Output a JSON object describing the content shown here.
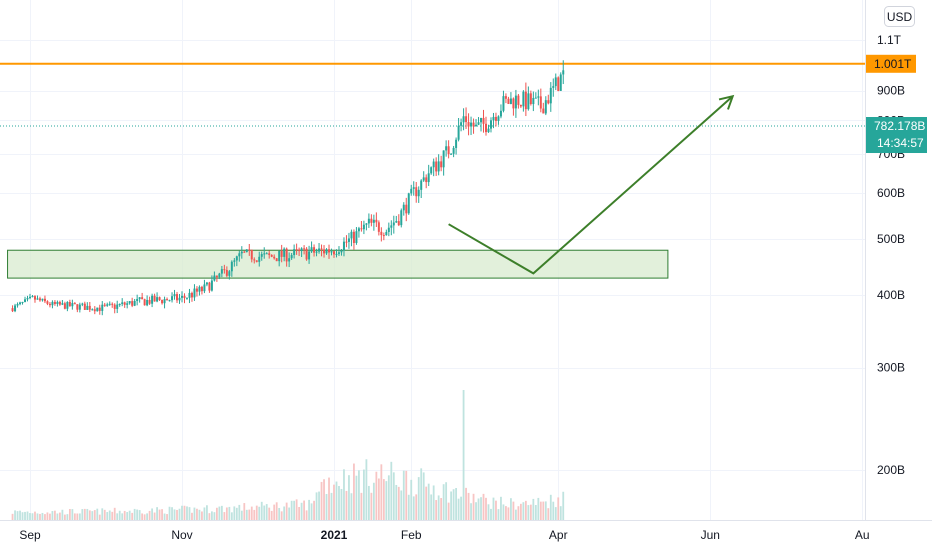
{
  "currency_button": {
    "label": "USD"
  },
  "colors": {
    "up": "#26a69a",
    "down": "#ef5350",
    "up_volume": "#bfe3df",
    "down_volume": "#f7c5c4",
    "resistance_line": "#ff9800",
    "support_zone_fill": "#d8ebcf",
    "support_zone_border": "#2e7d32",
    "arrow": "#3d7f2a",
    "last_price": "#26a69a",
    "grid": "#f0f3fa"
  },
  "chart_data": {
    "type": "candlestick",
    "title": "",
    "series": [
      {
        "name": "",
        "kind": "ohlc",
        "trend": [
          {
            "date": "2020-08-25",
            "close": 380000000000.0
          },
          {
            "date": "2020-09-02",
            "close": 395000000000.0
          },
          {
            "date": "2020-09-10",
            "close": 385000000000.0
          },
          {
            "date": "2020-10-01",
            "close": 380000000000.0
          },
          {
            "date": "2020-10-15",
            "close": 390000000000.0
          },
          {
            "date": "2020-11-01",
            "close": 395000000000.0
          },
          {
            "date": "2020-11-10",
            "close": 410000000000.0
          },
          {
            "date": "2020-11-20",
            "close": 445000000000.0
          },
          {
            "date": "2020-11-25",
            "close": 470000000000.0
          },
          {
            "date": "2020-12-05",
            "close": 465000000000.0
          },
          {
            "date": "2020-12-15",
            "close": 470000000000.0
          },
          {
            "date": "2020-12-25",
            "close": 475000000000.0
          },
          {
            "date": "2021-01-01",
            "close": 480000000000.0
          },
          {
            "date": "2021-01-08",
            "close": 500000000000.0
          },
          {
            "date": "2021-01-15",
            "close": 530000000000.0
          },
          {
            "date": "2021-01-22",
            "close": 520000000000.0
          },
          {
            "date": "2021-01-27",
            "close": 545000000000.0
          },
          {
            "date": "2021-02-02",
            "close": 600000000000.0
          },
          {
            "date": "2021-02-08",
            "close": 650000000000.0
          },
          {
            "date": "2021-02-13",
            "close": 685000000000.0
          },
          {
            "date": "2021-02-17",
            "close": 720000000000.0
          },
          {
            "date": "2021-02-22",
            "close": 810000000000.0
          },
          {
            "date": "2021-02-27",
            "close": 775000000000.0
          },
          {
            "date": "2021-03-03",
            "close": 790000000000.0
          },
          {
            "date": "2021-03-10",
            "close": 855000000000.0
          },
          {
            "date": "2021-03-15",
            "close": 870000000000.0
          },
          {
            "date": "2021-03-20",
            "close": 860000000000.0
          },
          {
            "date": "2021-03-25",
            "close": 845000000000.0
          },
          {
            "date": "2021-03-29",
            "close": 890000000000.0
          },
          {
            "date": "2021-04-03",
            "close": 960000000000.0
          }
        ]
      },
      {
        "name": "",
        "kind": "volume",
        "level": "low-high-low, peak near 2021-02-22"
      }
    ],
    "y_axis": {
      "position": "right",
      "ticks": [
        {
          "value": 200000000000.0,
          "label": "200B"
        },
        {
          "value": 300000000000.0,
          "label": "300B"
        },
        {
          "value": 400000000000.0,
          "label": "400B"
        },
        {
          "value": 500000000000.0,
          "label": "500B"
        },
        {
          "value": 600000000000.0,
          "label": "600B"
        },
        {
          "value": 700000000000.0,
          "label": "700B"
        },
        {
          "value": 800000000000.0,
          "label": "800B"
        },
        {
          "value": 900000000000.0,
          "label": "900B"
        },
        {
          "value": 1100000000000.0,
          "label": "1.1T"
        }
      ],
      "scale": "log"
    },
    "x_axis": {
      "ticks": [
        {
          "date": "2020-09-01",
          "label": "Sep",
          "bold": false
        },
        {
          "date": "2020-11-01",
          "label": "Nov",
          "bold": false
        },
        {
          "date": "2021-01-01",
          "label": "2021",
          "bold": true
        },
        {
          "date": "2021-02-01",
          "label": "Feb",
          "bold": false
        },
        {
          "date": "2021-04-01",
          "label": "Apr",
          "bold": false
        },
        {
          "date": "2021-06-01",
          "label": "Jun",
          "bold": false
        },
        {
          "date": "2021-08-01",
          "label": "Au",
          "bold": false
        }
      ]
    },
    "annotations": {
      "resistance": {
        "value": 1001000000000.0,
        "label": "1.001T"
      },
      "last_price": {
        "value": 782178000000.0,
        "label": "782.178B",
        "countdown": "14:34:57"
      },
      "support_zone": {
        "from_date": "2020-08-25",
        "to_date": "2021-05-15",
        "low": 428000000000.0,
        "high": 478000000000.0
      },
      "projection_arrow": [
        {
          "date": "2021-02-16",
          "value": 530000000000.0
        },
        {
          "date": "2021-03-22",
          "value": 436000000000.0
        },
        {
          "date": "2021-06-10",
          "value": 880000000000.0
        }
      ]
    },
    "grid": true,
    "legend": "none"
  }
}
